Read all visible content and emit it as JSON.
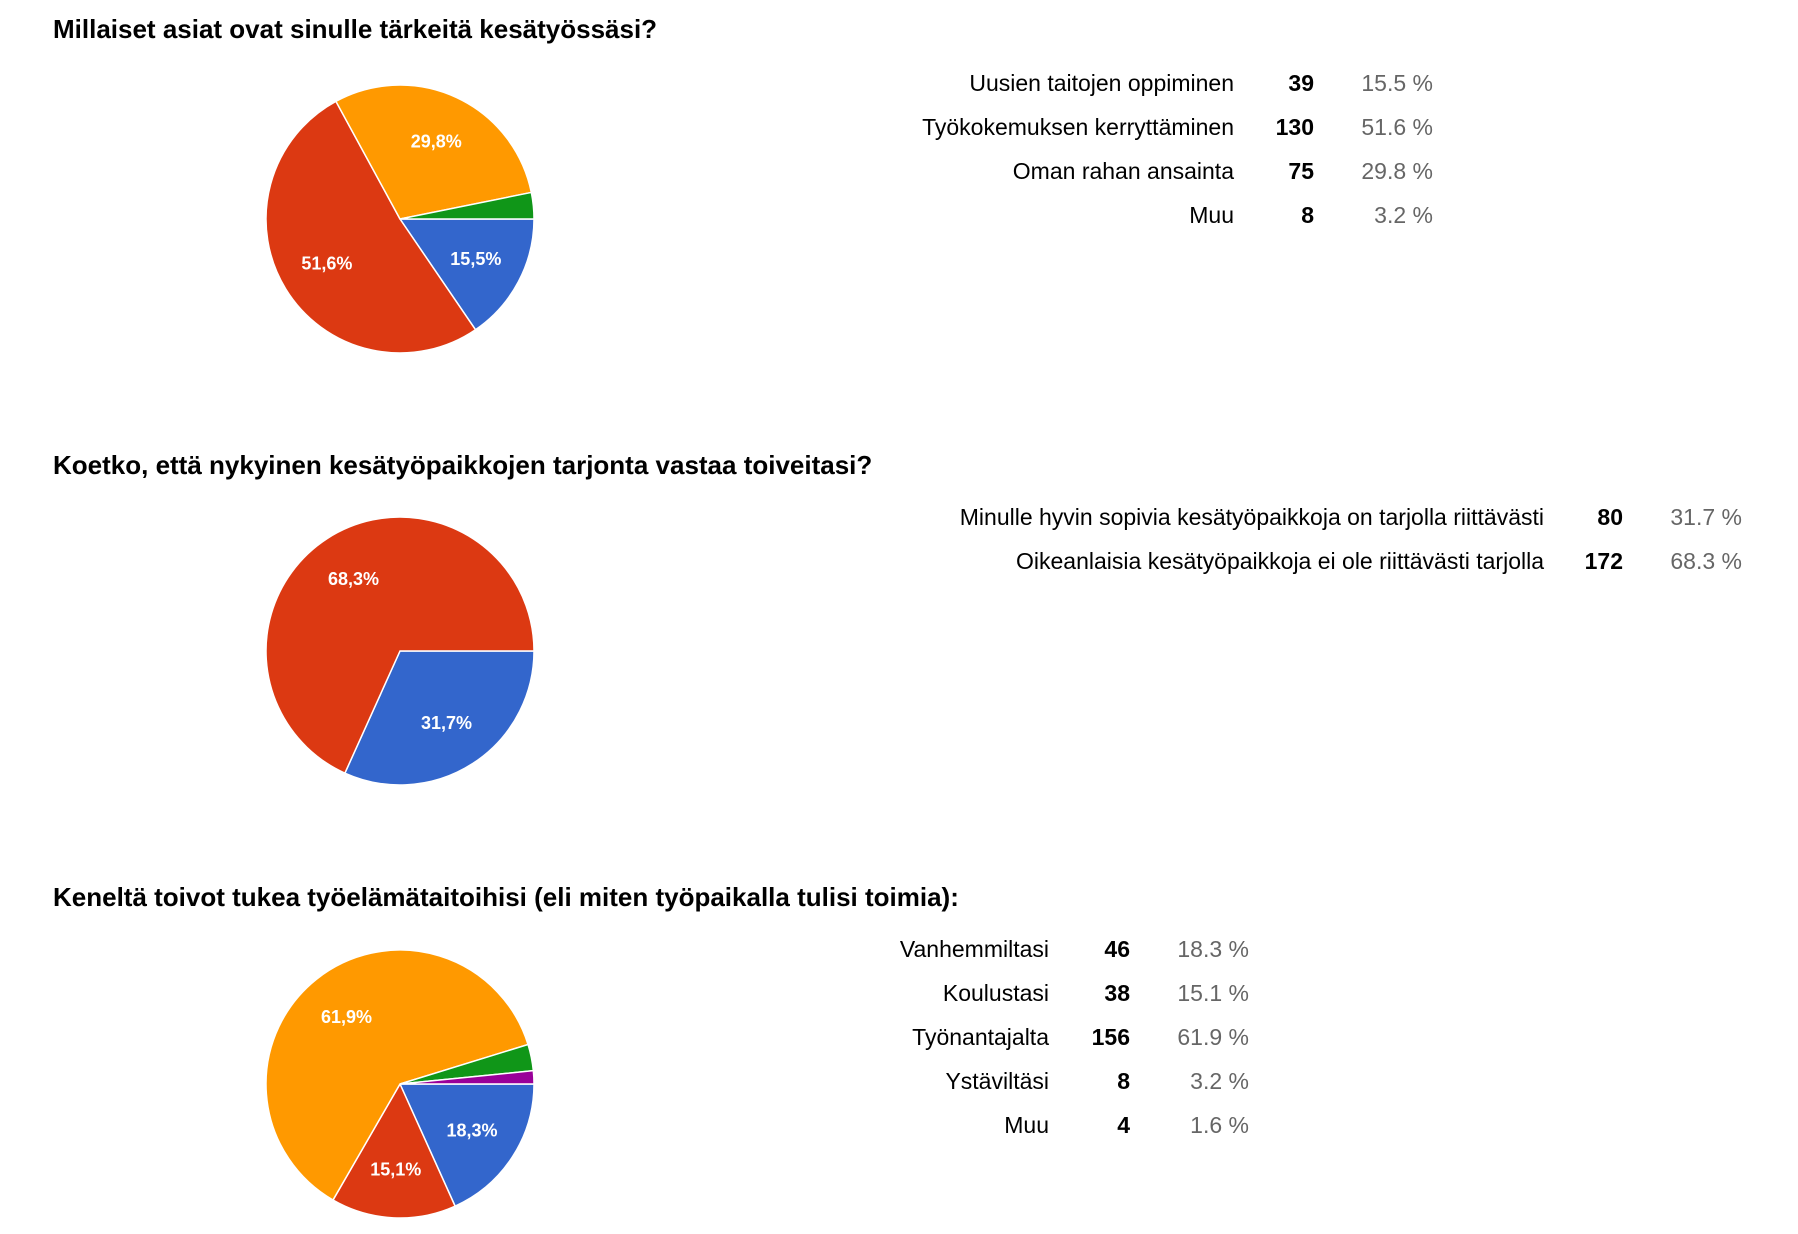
{
  "colors": [
    "#3366cc",
    "#dc3912",
    "#ff9900",
    "#109618",
    "#990099"
  ],
  "chart_data": [
    {
      "type": "pie",
      "title": "Millaiset asiat ovat sinulle tärkeitä kesätyössäsi?",
      "categories": [
        "Uusien taitojen oppiminen",
        "Työkokemuksen kerryttäminen",
        "Oman rahan ansainta",
        "Muu"
      ],
      "values": [
        39,
        130,
        75,
        8
      ],
      "percents": [
        "15.5 %",
        "51.6 %",
        "29.8 %",
        "3.2 %"
      ],
      "slice_labels": [
        "15,5%",
        "51,6%",
        "29,8%",
        ""
      ]
    },
    {
      "type": "pie",
      "title": "Koetko, että nykyinen kesätyöpaikkojen tarjonta vastaa toiveitasi?",
      "categories": [
        "Minulle hyvin sopivia kesätyöpaikkoja on tarjolla riittävästi",
        "Oikeanlaisia kesätyöpaikkoja ei ole riittävästi tarjolla"
      ],
      "values": [
        80,
        172
      ],
      "percents": [
        "31.7 %",
        "68.3 %"
      ],
      "slice_labels": [
        "31,7%",
        "68,3%"
      ]
    },
    {
      "type": "pie",
      "title": "Keneltä toivot tukea työelämätaitoihisi (eli miten työpaikalla tulisi toimia):",
      "categories": [
        "Vanhemmiltasi",
        "Koulustasi",
        "Työnantajalta",
        "Ystäviltäsi",
        "Muu"
      ],
      "values": [
        46,
        38,
        156,
        8,
        4
      ],
      "percents": [
        "18.3 %",
        "15.1 %",
        "61.9 %",
        "3.2 %",
        "1.6 %"
      ],
      "slice_labels": [
        "18,3%",
        "15,1%",
        "61,9%",
        "",
        ""
      ]
    }
  ]
}
